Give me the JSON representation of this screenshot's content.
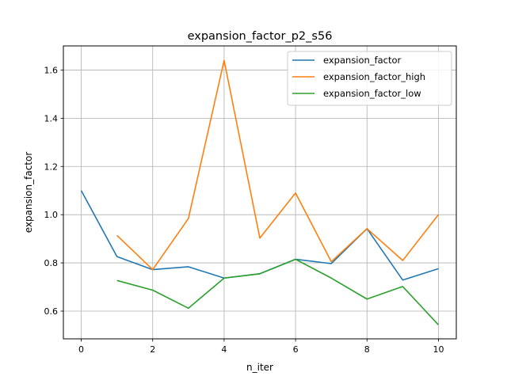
{
  "chart_data": {
    "type": "line",
    "title": "expansion_factor_p2_s56",
    "xlabel": "n_iter",
    "ylabel": "expansion_factor",
    "xlim": [
      -0.5,
      10.5
    ],
    "ylim": [
      0.485,
      1.7
    ],
    "xticks": [
      0,
      2,
      4,
      6,
      8,
      10
    ],
    "yticks": [
      0.6,
      0.8,
      1.0,
      1.2,
      1.4,
      1.6
    ],
    "ytick_labels": [
      "0.6",
      "0.8",
      "1.0",
      "1.2",
      "1.4",
      "1.6"
    ],
    "grid": true,
    "legend_position": "top-right",
    "series": [
      {
        "name": "expansion_factor",
        "color": "#1f77b4",
        "x": [
          0,
          1,
          2,
          3,
          4,
          5,
          6,
          7,
          8,
          9,
          10
        ],
        "y": [
          1.1,
          0.826,
          0.772,
          0.784,
          0.737,
          0.755,
          0.815,
          0.797,
          0.942,
          0.729,
          0.776
        ]
      },
      {
        "name": "expansion_factor_high",
        "color": "#ff7f0e",
        "x": [
          1,
          2,
          3,
          4,
          5,
          6,
          7,
          8,
          9,
          10
        ],
        "y": [
          0.914,
          0.772,
          0.984,
          1.64,
          0.903,
          1.09,
          0.805,
          0.942,
          0.81,
          1.0
        ]
      },
      {
        "name": "expansion_factor_low",
        "color": "#2ca02c",
        "x": [
          1,
          2,
          3,
          4,
          5,
          6,
          7,
          8,
          9,
          10
        ],
        "y": [
          0.727,
          0.687,
          0.612,
          0.737,
          0.755,
          0.815,
          0.737,
          0.65,
          0.702,
          0.543
        ]
      }
    ]
  }
}
